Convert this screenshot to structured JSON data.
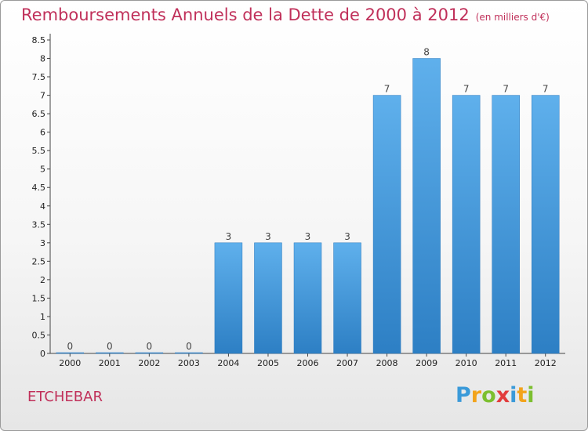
{
  "title": "Remboursements Annuels de la Dette de 2000 à 2012",
  "unit": "(en milliers d'€)",
  "commune": "ETCHEBAR",
  "logo": {
    "letters": [
      "P",
      "r",
      "o",
      "x",
      "i",
      "t",
      "i"
    ],
    "colors": [
      "#3a9ad9",
      "#f2a31b",
      "#7cbf2f",
      "#e23b3b",
      "#3a9ad9",
      "#f2a31b",
      "#7cbf2f"
    ]
  },
  "chart_data": {
    "type": "bar",
    "categories": [
      "2000",
      "2001",
      "2002",
      "2003",
      "2004",
      "2005",
      "2006",
      "2007",
      "2008",
      "2009",
      "2010",
      "2011",
      "2012"
    ],
    "values": [
      0,
      0,
      0,
      0,
      3,
      3,
      3,
      3,
      7,
      8,
      7,
      7,
      7
    ],
    "data_labels": [
      "0",
      "0",
      "0",
      "0",
      "3",
      "3",
      "3",
      "3",
      "7",
      "8",
      "7",
      "7",
      "7"
    ],
    "yticks": [
      "0",
      "0.5",
      "1",
      "1.5",
      "2",
      "2.5",
      "3",
      "3.5",
      "4",
      "4.5",
      "5",
      "5.5",
      "6",
      "6.5",
      "7",
      "7.5",
      "8",
      "8.5"
    ],
    "ylim": [
      0,
      8.5
    ],
    "bar_color": "#3a8fd6",
    "grid": false
  }
}
